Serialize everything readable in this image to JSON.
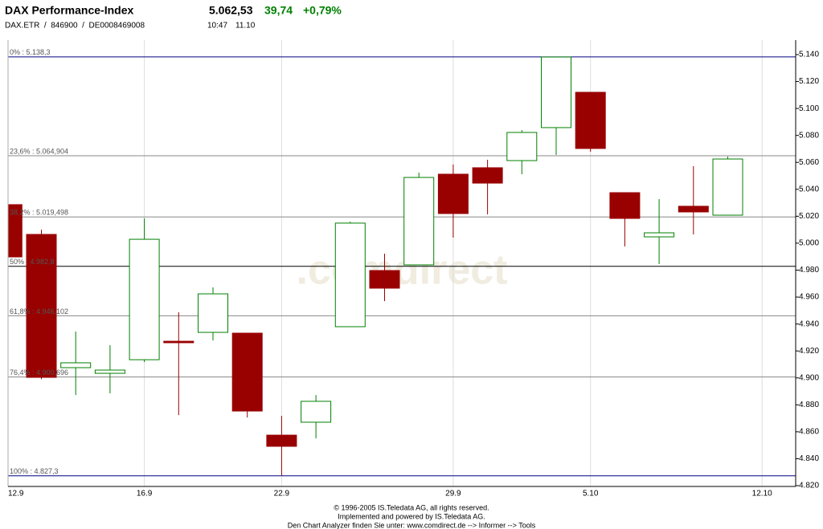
{
  "chart_data": {
    "type": "candlestick",
    "title": "DAX Performance-Index",
    "subtitle": "DAX.ETR  /  846900  /  DE0008469008",
    "last": {
      "value": 5062.53,
      "label": "5.062,53"
    },
    "change": {
      "value": 39.74,
      "label": "39,74"
    },
    "change_pct": {
      "value": 0.79,
      "label": "+0,79%"
    },
    "time": "10:47",
    "date": "11.10",
    "watermark": ".comdirect",
    "up_color": "#008000",
    "down_color": "#990000",
    "open": [
      5028.6,
      5006.5,
      4907.6,
      4903.4,
      4913.5,
      4927.2,
      4933.8,
      4933.2,
      4857.5,
      4867.1,
      4938.0,
      4979.7,
      4983.9,
      5051.2,
      5056.0,
      5061.3,
      5085.8,
      5112.0,
      5037.5,
      5004.7,
      5027.4,
      5020.8
    ],
    "high": [
      5035.7,
      5010.0,
      4934.4,
      4924.3,
      5018.4,
      4948.7,
      4967.2,
      4933.2,
      4871.8,
      4887.3,
      5016.0,
      4992.2,
      5052.4,
      5058.4,
      5061.9,
      5084.0,
      5138.2,
      5112.0,
      5037.5,
      5032.7,
      5057.2,
      5064.3
    ],
    "low": [
      4979.0,
      4899.0,
      4887.3,
      4888.5,
      4911.8,
      4872.4,
      4927.8,
      4870.6,
      4827.7,
      4855.1,
      4938.0,
      4957.0,
      4983.9,
      5004.1,
      5021.4,
      5051.2,
      5065.5,
      5067.9,
      4997.6,
      4984.5,
      5006.5,
      5020.8
    ],
    "close": [
      4989.8,
      4900.4,
      4911.2,
      4905.8,
      5002.9,
      4926.1,
      4962.4,
      4875.4,
      4849.2,
      4882.6,
      5014.9,
      4966.6,
      5048.8,
      5022.0,
      5044.6,
      5082.2,
      5138.2,
      5070.3,
      5018.4,
      5007.7,
      5023.2,
      5062.5
    ],
    "xticks": [
      {
        "value": 0,
        "label": "12.9"
      },
      {
        "value": 4,
        "label": "16.9"
      },
      {
        "value": 8,
        "label": "22.9"
      },
      {
        "value": 13,
        "label": "29.9"
      },
      {
        "value": 17,
        "label": "5.10"
      },
      {
        "value": 22,
        "label": "12.10"
      }
    ],
    "ylim": [
      4820,
      5140
    ],
    "yticks": [
      {
        "value": 4820,
        "label": "4.820"
      },
      {
        "value": 4840,
        "label": "4.840"
      },
      {
        "value": 4860,
        "label": "4.860"
      },
      {
        "value": 4880,
        "label": "4.880"
      },
      {
        "value": 4900,
        "label": "4.900"
      },
      {
        "value": 4920,
        "label": "4.920"
      },
      {
        "value": 4940,
        "label": "4.940"
      },
      {
        "value": 4960,
        "label": "4.960"
      },
      {
        "value": 4980,
        "label": "4.980"
      },
      {
        "value": 5000,
        "label": "5.000"
      },
      {
        "value": 5020,
        "label": "5.020"
      },
      {
        "value": 5040,
        "label": "5.040"
      },
      {
        "value": 5060,
        "label": "5.060"
      },
      {
        "value": 5080,
        "label": "5.080"
      },
      {
        "value": 5100,
        "label": "5.100"
      },
      {
        "value": 5120,
        "label": "5.120"
      },
      {
        "value": 5140,
        "label": "5.140"
      }
    ],
    "fib_levels": [
      {
        "value": 5138.3,
        "label": "0% : 5.138,3",
        "color": "#000080"
      },
      {
        "value": 5064.904,
        "label": "23,6% : 5.064,904",
        "color": "#888888"
      },
      {
        "value": 5019.498,
        "label": "38,2% : 5.019,498",
        "color": "#888888"
      },
      {
        "value": 4982.8,
        "label": "50% : 4.982,8",
        "color": "#000000"
      },
      {
        "value": 4946.102,
        "label": "61,8% : 4.946,102",
        "color": "#888888"
      },
      {
        "value": 4900.696,
        "label": "76,4% : 4.900,696",
        "color": "#888888"
      },
      {
        "value": 4827.3,
        "label": "100% : 4.827,3",
        "color": "#000080"
      }
    ],
    "footer": [
      "© 1996-2005 IS.Teledata AG, all rights reserved.",
      "Implemented and powered by IS.Teledata AG.",
      "Den Chart Analyzer finden Sie unter: www.comdirect.de --> Informer --> Tools"
    ]
  }
}
